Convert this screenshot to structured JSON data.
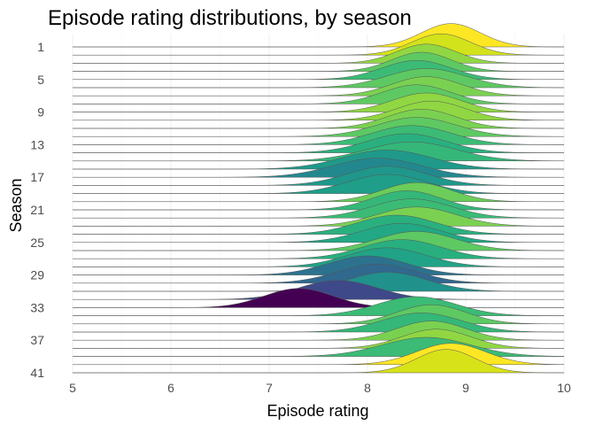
{
  "chart_data": {
    "type": "ridgeline",
    "title": "Episode rating distributions, by season",
    "xlabel": "Episode rating",
    "ylabel": "Season",
    "xlim": [
      5,
      10
    ],
    "x_ticks": [
      5,
      6,
      7,
      8,
      9,
      10
    ],
    "y_tick_labels": [
      "1",
      "5",
      "9",
      "13",
      "17",
      "21",
      "25",
      "29",
      "33",
      "37",
      "41"
    ],
    "y_tick_seasons": [
      1,
      5,
      9,
      13,
      17,
      21,
      25,
      29,
      33,
      37,
      41
    ],
    "grid": true,
    "legend": "none",
    "series": [
      {
        "season": 1,
        "mean": 8.85,
        "sd": 0.3,
        "height": 1.1,
        "color": "#fde725"
      },
      {
        "season": 2,
        "mean": 8.75,
        "sd": 0.3,
        "height": 1.0,
        "color": "#d2e21b"
      },
      {
        "season": 3,
        "mean": 8.6,
        "sd": 0.3,
        "height": 0.9,
        "color": "#90d743"
      },
      {
        "season": 4,
        "mean": 8.55,
        "sd": 0.3,
        "height": 0.9,
        "color": "#5ec962"
      },
      {
        "season": 5,
        "mean": 8.5,
        "sd": 0.35,
        "height": 0.9,
        "color": "#3bbb75"
      },
      {
        "season": 6,
        "mean": 8.6,
        "sd": 0.4,
        "height": 0.9,
        "color": "#5ec962"
      },
      {
        "season": 7,
        "mean": 8.6,
        "sd": 0.35,
        "height": 0.9,
        "color": "#7ad151"
      },
      {
        "season": 8,
        "mean": 8.5,
        "sd": 0.35,
        "height": 0.9,
        "color": "#5ec962"
      },
      {
        "season": 9,
        "mean": 8.6,
        "sd": 0.35,
        "height": 0.9,
        "color": "#90d743"
      },
      {
        "season": 10,
        "mean": 8.65,
        "sd": 0.35,
        "height": 0.9,
        "color": "#90d743"
      },
      {
        "season": 11,
        "mean": 8.55,
        "sd": 0.35,
        "height": 0.9,
        "color": "#7ad151"
      },
      {
        "season": 12,
        "mean": 8.5,
        "sd": 0.4,
        "height": 0.9,
        "color": "#5ec962"
      },
      {
        "season": 13,
        "mean": 8.45,
        "sd": 0.4,
        "height": 0.9,
        "color": "#3bbb75"
      },
      {
        "season": 14,
        "mean": 8.4,
        "sd": 0.4,
        "height": 0.9,
        "color": "#2ab07f"
      },
      {
        "season": 15,
        "mean": 8.45,
        "sd": 0.45,
        "height": 0.9,
        "color": "#35b779"
      },
      {
        "season": 16,
        "mean": 8.2,
        "sd": 0.45,
        "height": 0.9,
        "color": "#1f998a"
      },
      {
        "season": 17,
        "mean": 8.1,
        "sd": 0.45,
        "height": 0.9,
        "color": "#23888e"
      },
      {
        "season": 18,
        "mean": 8.2,
        "sd": 0.4,
        "height": 0.9,
        "color": "#1f978b"
      },
      {
        "season": 19,
        "mean": 8.2,
        "sd": 0.4,
        "height": 0.9,
        "color": "#1f9e89"
      },
      {
        "season": 20,
        "mean": 8.5,
        "sd": 0.35,
        "height": 0.9,
        "color": "#6ccd5a"
      },
      {
        "season": 21,
        "mean": 8.4,
        "sd": 0.35,
        "height": 0.9,
        "color": "#35b779"
      },
      {
        "season": 22,
        "mean": 8.45,
        "sd": 0.4,
        "height": 0.9,
        "color": "#3bbb75"
      },
      {
        "season": 23,
        "mean": 8.5,
        "sd": 0.4,
        "height": 0.9,
        "color": "#7ad151"
      },
      {
        "season": 24,
        "mean": 8.3,
        "sd": 0.4,
        "height": 0.9,
        "color": "#2ab07f"
      },
      {
        "season": 25,
        "mean": 8.35,
        "sd": 0.4,
        "height": 0.9,
        "color": "#22a884"
      },
      {
        "season": 26,
        "mean": 8.5,
        "sd": 0.4,
        "height": 0.9,
        "color": "#5ec962"
      },
      {
        "season": 27,
        "mean": 8.35,
        "sd": 0.4,
        "height": 0.9,
        "color": "#29af7f"
      },
      {
        "season": 28,
        "mean": 8.2,
        "sd": 0.4,
        "height": 0.9,
        "color": "#20a386"
      },
      {
        "season": 29,
        "mean": 8.0,
        "sd": 0.4,
        "height": 0.9,
        "color": "#2c728e"
      },
      {
        "season": 30,
        "mean": 8.1,
        "sd": 0.4,
        "height": 0.9,
        "color": "#31688e"
      },
      {
        "season": 31,
        "mean": 8.2,
        "sd": 0.4,
        "height": 0.9,
        "color": "#21918c"
      },
      {
        "season": 32,
        "mean": 7.7,
        "sd": 0.4,
        "height": 0.9,
        "color": "#3e4989"
      },
      {
        "season": 33,
        "mean": 7.3,
        "sd": 0.35,
        "height": 0.9,
        "color": "#440154"
      },
      {
        "season": 34,
        "mean": 8.5,
        "sd": 0.4,
        "height": 0.9,
        "color": "#3bbb75"
      },
      {
        "season": 35,
        "mean": 8.65,
        "sd": 0.35,
        "height": 0.9,
        "color": "#5ec962"
      },
      {
        "season": 36,
        "mean": 8.55,
        "sd": 0.4,
        "height": 0.9,
        "color": "#35b779"
      },
      {
        "season": 37,
        "mean": 8.65,
        "sd": 0.35,
        "height": 0.9,
        "color": "#7ad151"
      },
      {
        "season": 38,
        "mean": 8.7,
        "sd": 0.35,
        "height": 0.9,
        "color": "#90d743"
      },
      {
        "season": 39,
        "mean": 8.6,
        "sd": 0.45,
        "height": 0.9,
        "color": "#3bbb75"
      },
      {
        "season": 40,
        "mean": 8.85,
        "sd": 0.35,
        "height": 1.0,
        "color": "#fde725"
      },
      {
        "season": 41,
        "mean": 8.8,
        "sd": 0.3,
        "height": 1.1,
        "color": "#d8e219"
      }
    ]
  }
}
